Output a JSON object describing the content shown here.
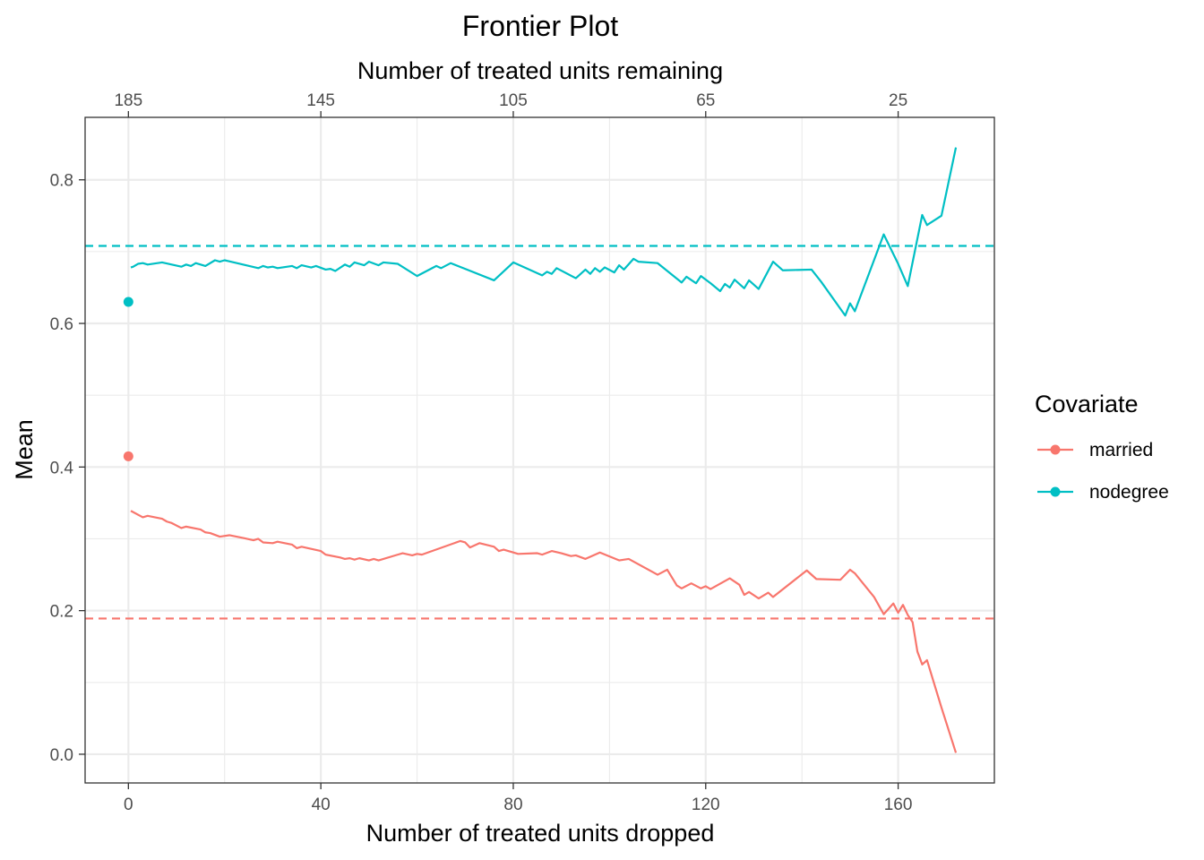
{
  "chart_data": {
    "type": "line",
    "title": "Frontier Plot",
    "xlabel": "Number of treated units dropped",
    "ylabel": "Mean",
    "x2label": "Number of treated units remaining",
    "xlim": [
      -9,
      180
    ],
    "ylim": [
      -0.04,
      0.887
    ],
    "x_ticks": [
      0,
      40,
      80,
      120,
      160
    ],
    "x_tick_labels": [
      "0",
      "40",
      "80",
      "120",
      "160"
    ],
    "x2_ticks": [
      0,
      40,
      80,
      120,
      160
    ],
    "x2_tick_labels": [
      "185",
      "145",
      "105",
      "65",
      "25"
    ],
    "y_ticks": [
      0.0,
      0.2,
      0.4,
      0.6,
      0.8
    ],
    "y_tick_labels": [
      "0.0",
      "0.2",
      "0.4",
      "0.6",
      "0.8"
    ],
    "grid": true,
    "legend": {
      "title": "Covariate",
      "position": "right"
    },
    "series": [
      {
        "name": "married",
        "color": "#F8766D",
        "start_point": [
          0,
          0.415
        ],
        "target_mean": 0.189,
        "points": [
          [
            0.5,
            0.339
          ],
          [
            3,
            0.33
          ],
          [
            4,
            0.332
          ],
          [
            7,
            0.328
          ],
          [
            8,
            0.324
          ],
          [
            9,
            0.322
          ],
          [
            11,
            0.315
          ],
          [
            12,
            0.317
          ],
          [
            15,
            0.313
          ],
          [
            16,
            0.309
          ],
          [
            17,
            0.308
          ],
          [
            19,
            0.303
          ],
          [
            21,
            0.305
          ],
          [
            24,
            0.301
          ],
          [
            26,
            0.298
          ],
          [
            27,
            0.3
          ],
          [
            28,
            0.295
          ],
          [
            30,
            0.294
          ],
          [
            31,
            0.296
          ],
          [
            34,
            0.292
          ],
          [
            35,
            0.287
          ],
          [
            36,
            0.289
          ],
          [
            40,
            0.283
          ],
          [
            41,
            0.278
          ],
          [
            44,
            0.274
          ],
          [
            45,
            0.272
          ],
          [
            46,
            0.273
          ],
          [
            47,
            0.271
          ],
          [
            48,
            0.273
          ],
          [
            50,
            0.27
          ],
          [
            51,
            0.272
          ],
          [
            52,
            0.27
          ],
          [
            56,
            0.278
          ],
          [
            57,
            0.28
          ],
          [
            59,
            0.277
          ],
          [
            60,
            0.279
          ],
          [
            61,
            0.278
          ],
          [
            69,
            0.297
          ],
          [
            70,
            0.295
          ],
          [
            71,
            0.288
          ],
          [
            73,
            0.294
          ],
          [
            76,
            0.289
          ],
          [
            77,
            0.283
          ],
          [
            78,
            0.285
          ],
          [
            80,
            0.281
          ],
          [
            81,
            0.279
          ],
          [
            85,
            0.28
          ],
          [
            86,
            0.278
          ],
          [
            88,
            0.283
          ],
          [
            90,
            0.28
          ],
          [
            92,
            0.276
          ],
          [
            93,
            0.277
          ],
          [
            95,
            0.272
          ],
          [
            98,
            0.281
          ],
          [
            102,
            0.27
          ],
          [
            104,
            0.272
          ],
          [
            110,
            0.25
          ],
          [
            112,
            0.257
          ],
          [
            114,
            0.235
          ],
          [
            115,
            0.231
          ],
          [
            117,
            0.238
          ],
          [
            119,
            0.231
          ],
          [
            120,
            0.234
          ],
          [
            121,
            0.23
          ],
          [
            125,
            0.245
          ],
          [
            127,
            0.236
          ],
          [
            128,
            0.222
          ],
          [
            129,
            0.226
          ],
          [
            131,
            0.217
          ],
          [
            133,
            0.225
          ],
          [
            134,
            0.219
          ],
          [
            141,
            0.256
          ],
          [
            143,
            0.244
          ],
          [
            148,
            0.243
          ],
          [
            150,
            0.257
          ],
          [
            151,
            0.252
          ],
          [
            155,
            0.219
          ],
          [
            157,
            0.195
          ],
          [
            159,
            0.21
          ],
          [
            160,
            0.197
          ],
          [
            161,
            0.208
          ],
          [
            162,
            0.194
          ],
          [
            163,
            0.184
          ],
          [
            164,
            0.143
          ],
          [
            165,
            0.125
          ],
          [
            166,
            0.131
          ],
          [
            169,
            0.065
          ],
          [
            172,
            0.002
          ]
        ]
      },
      {
        "name": "nodegree",
        "color": "#00BFC4",
        "start_point": [
          0,
          0.63
        ],
        "target_mean": 0.708,
        "points": [
          [
            0.5,
            0.678
          ],
          [
            1,
            0.679
          ],
          [
            2,
            0.683
          ],
          [
            3,
            0.684
          ],
          [
            4,
            0.682
          ],
          [
            7,
            0.685
          ],
          [
            11,
            0.679
          ],
          [
            12,
            0.682
          ],
          [
            13,
            0.68
          ],
          [
            14,
            0.684
          ],
          [
            16,
            0.68
          ],
          [
            18,
            0.688
          ],
          [
            19,
            0.686
          ],
          [
            20,
            0.688
          ],
          [
            27,
            0.677
          ],
          [
            28,
            0.68
          ],
          [
            29,
            0.678
          ],
          [
            30,
            0.679
          ],
          [
            31,
            0.677
          ],
          [
            34,
            0.68
          ],
          [
            35,
            0.677
          ],
          [
            36,
            0.681
          ],
          [
            38,
            0.678
          ],
          [
            39,
            0.68
          ],
          [
            41,
            0.675
          ],
          [
            42,
            0.676
          ],
          [
            43,
            0.673
          ],
          [
            45,
            0.682
          ],
          [
            46,
            0.679
          ],
          [
            47,
            0.685
          ],
          [
            49,
            0.681
          ],
          [
            50,
            0.686
          ],
          [
            52,
            0.681
          ],
          [
            53,
            0.685
          ],
          [
            56,
            0.683
          ],
          [
            60,
            0.666
          ],
          [
            64,
            0.68
          ],
          [
            65,
            0.677
          ],
          [
            67,
            0.684
          ],
          [
            70,
            0.676
          ],
          [
            76,
            0.66
          ],
          [
            80,
            0.685
          ],
          [
            86,
            0.667
          ],
          [
            87,
            0.672
          ],
          [
            88,
            0.669
          ],
          [
            89,
            0.677
          ],
          [
            93,
            0.663
          ],
          [
            95,
            0.675
          ],
          [
            96,
            0.669
          ],
          [
            97,
            0.677
          ],
          [
            98,
            0.672
          ],
          [
            99,
            0.678
          ],
          [
            101,
            0.671
          ],
          [
            102,
            0.681
          ],
          [
            103,
            0.675
          ],
          [
            105,
            0.69
          ],
          [
            106,
            0.686
          ],
          [
            110,
            0.684
          ],
          [
            115,
            0.657
          ],
          [
            116,
            0.665
          ],
          [
            118,
            0.656
          ],
          [
            119,
            0.666
          ],
          [
            121,
            0.656
          ],
          [
            123,
            0.645
          ],
          [
            124,
            0.655
          ],
          [
            125,
            0.65
          ],
          [
            126,
            0.661
          ],
          [
            128,
            0.649
          ],
          [
            129,
            0.66
          ],
          [
            131,
            0.648
          ],
          [
            134,
            0.686
          ],
          [
            136,
            0.674
          ],
          [
            142,
            0.675
          ],
          [
            144,
            0.658
          ],
          [
            149,
            0.611
          ],
          [
            150,
            0.628
          ],
          [
            151,
            0.617
          ],
          [
            157,
            0.724
          ],
          [
            160,
            0.683
          ],
          [
            162,
            0.652
          ],
          [
            165,
            0.751
          ],
          [
            166,
            0.737
          ],
          [
            169,
            0.75
          ],
          [
            172,
            0.845
          ]
        ]
      }
    ]
  }
}
